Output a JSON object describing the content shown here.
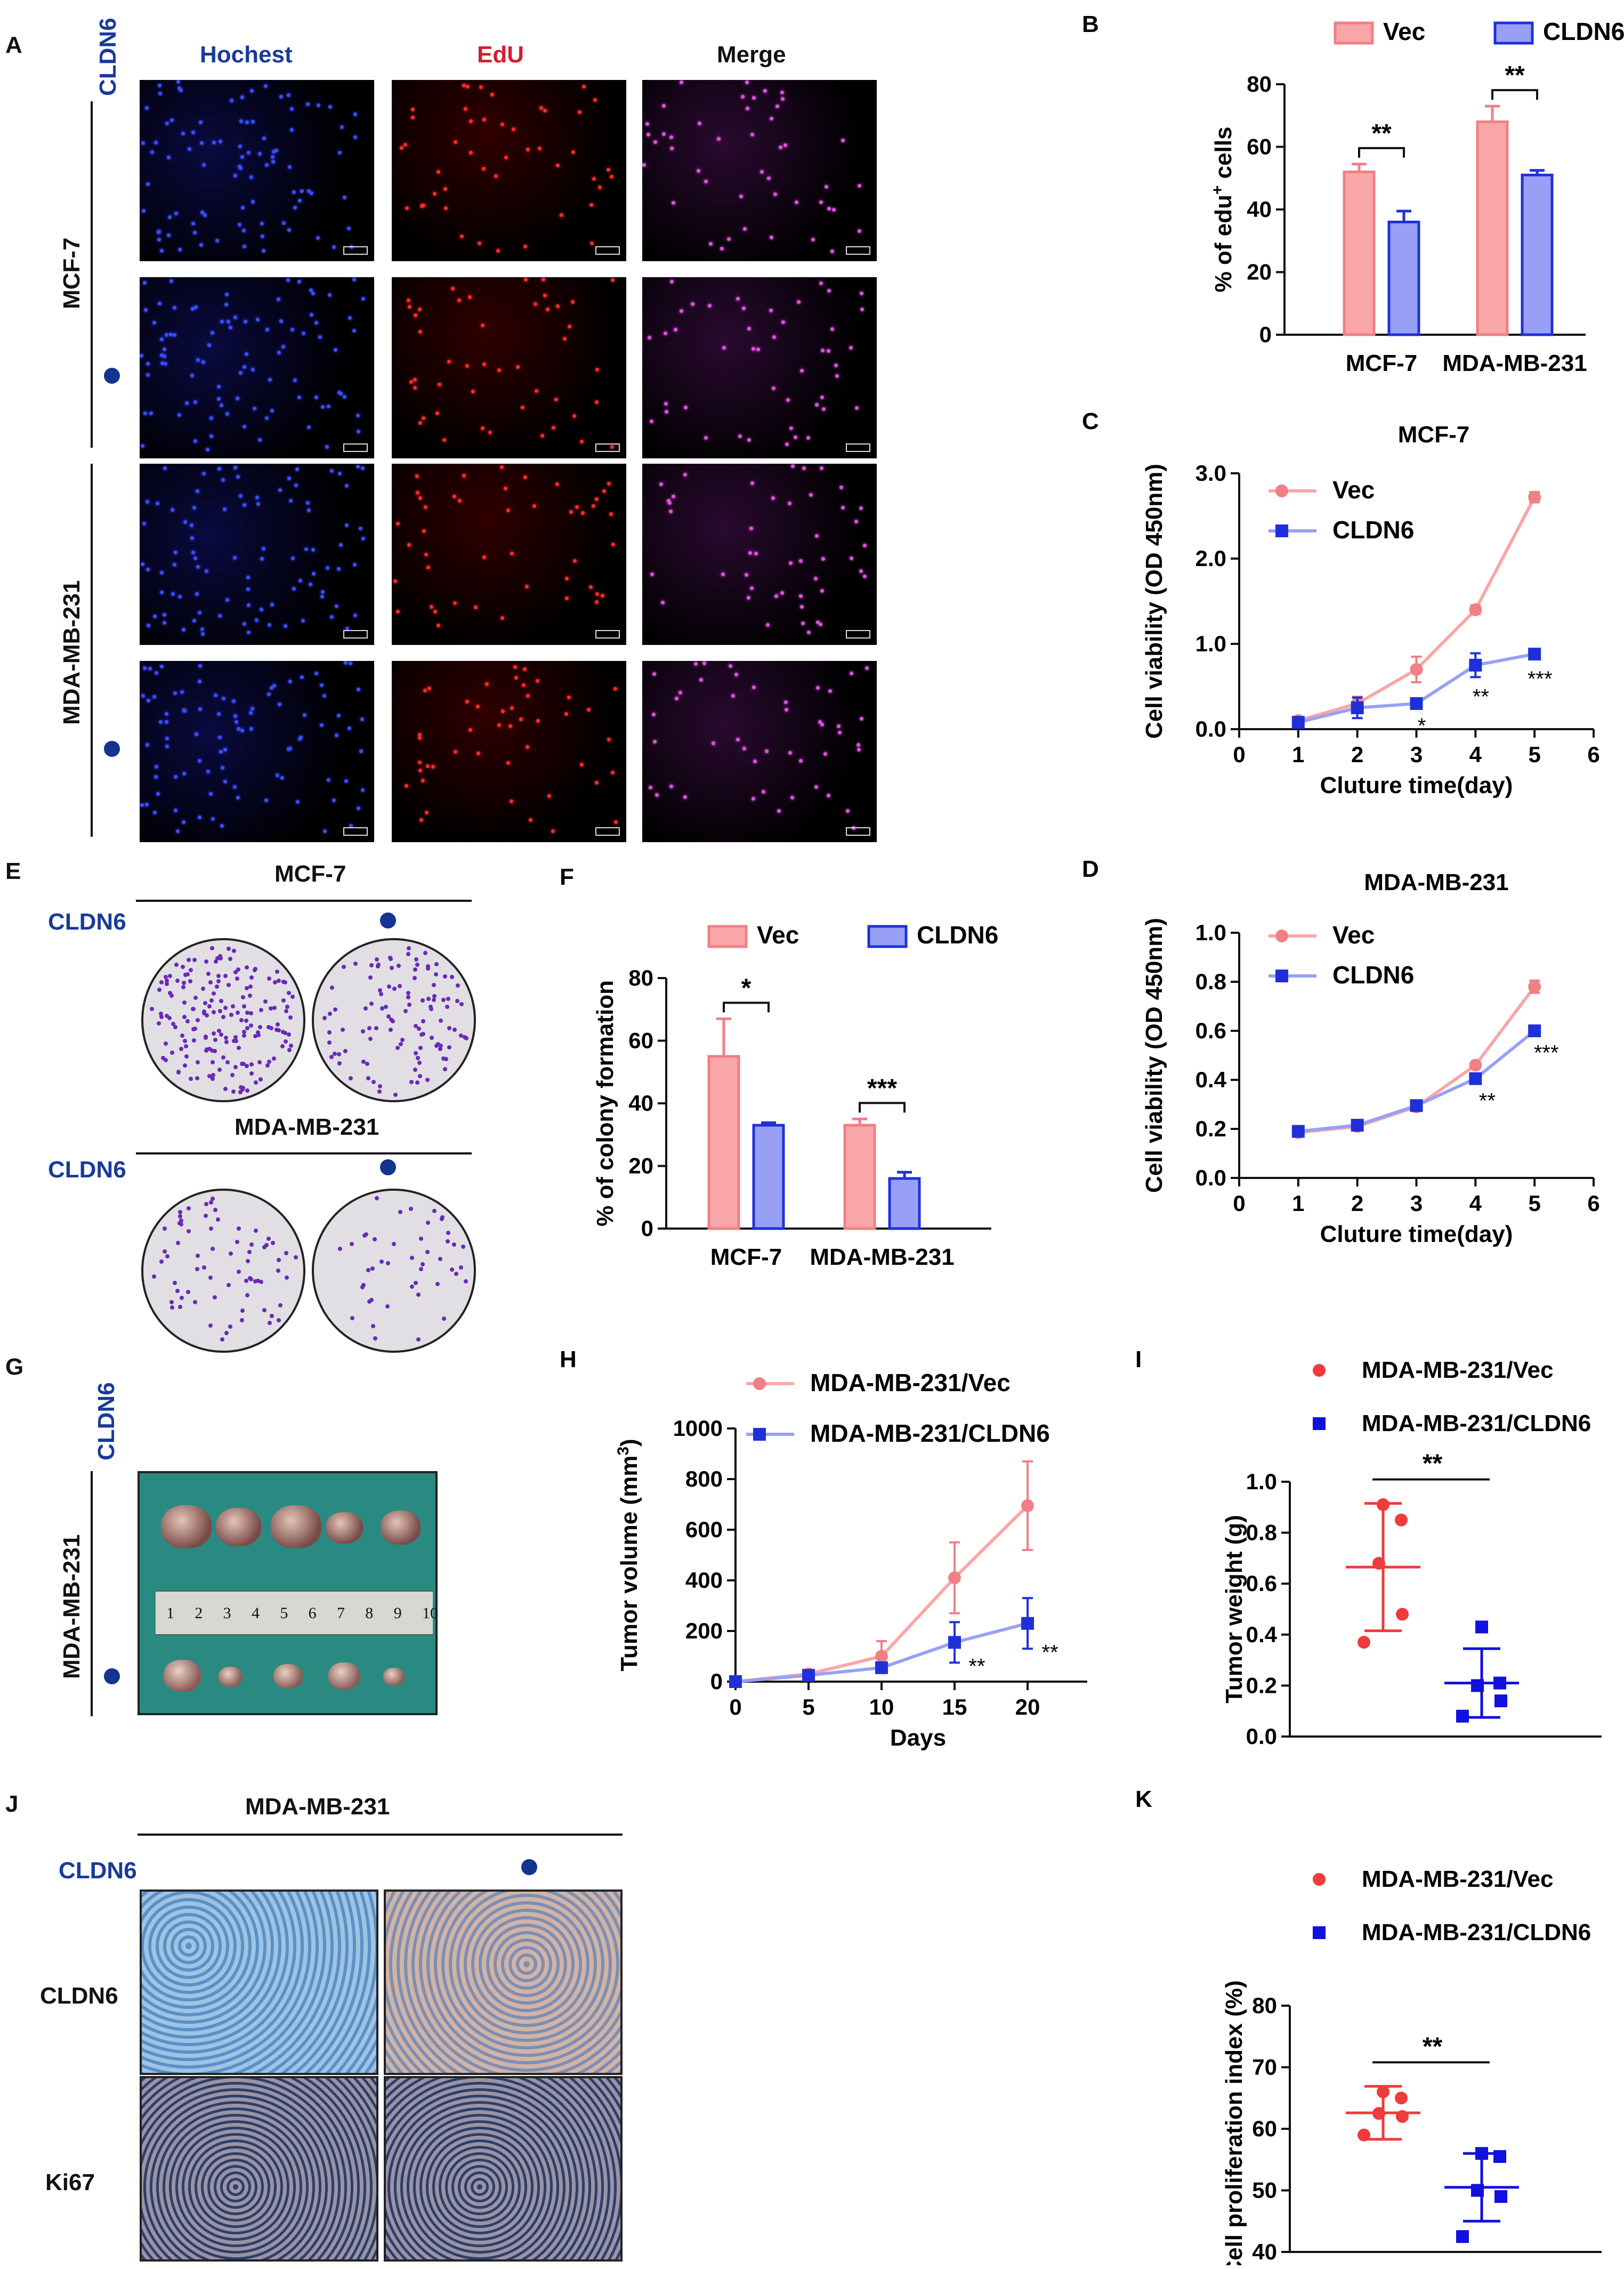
{
  "panels": {
    "A": {
      "letter": "A",
      "cldn6": "CLDN6",
      "columns": [
        "Hochest",
        "EdU",
        "Merge"
      ],
      "rows": [
        "MCF-7",
        "MDA-MB-231"
      ]
    },
    "E": {
      "letter": "E",
      "cldn6": "CLDN6",
      "groups": [
        "MCF-7",
        "MDA-MB-231"
      ]
    },
    "G": {
      "letter": "G",
      "cldn6": "CLDN6",
      "row": "MDA-MB-231",
      "ruler": [
        "1",
        "2",
        "3",
        "4",
        "5",
        "6",
        "7",
        "8",
        "9",
        "10"
      ]
    },
    "J": {
      "letter": "J",
      "title": "MDA-MB-231",
      "cldn6": "CLDN6",
      "rows": [
        "CLDN6",
        "Ki67"
      ]
    }
  },
  "colors": {
    "vec": "#f07f86",
    "vec_fill": "#f8a6a8",
    "cldn6": "#2030d8",
    "cldn6_fill": "#98a0f6",
    "label_blue": "#1a3a9a",
    "label_red": "#d41c2c"
  },
  "chart_data": [
    {
      "id": "B",
      "letter": "B",
      "type": "bar",
      "categories": [
        "MCF-7",
        "MDA-MB-231"
      ],
      "series": [
        {
          "name": "Vec",
          "values": [
            52,
            68
          ],
          "errors": [
            2.5,
            5
          ]
        },
        {
          "name": "CLDN6",
          "values": [
            36,
            51
          ],
          "errors": [
            3.5,
            1.5
          ]
        }
      ],
      "ylabel_main": "% of edu",
      "ylabel_sup": "+",
      "ylabel_end": " cells",
      "ylim": [
        0,
        80
      ],
      "yticks": [
        "0",
        "20",
        "40",
        "60",
        "80"
      ],
      "sig": [
        "**",
        "**"
      ]
    },
    {
      "id": "C",
      "letter": "C",
      "type": "line",
      "title": "MCF-7",
      "x": [
        1,
        2,
        3,
        4,
        5
      ],
      "series": [
        {
          "name": "Vec",
          "values": [
            0.1,
            0.3,
            0.7,
            1.4,
            2.72
          ],
          "errors": [
            0.03,
            0.08,
            0.15,
            0.05,
            0.06
          ]
        },
        {
          "name": "CLDN6",
          "values": [
            0.08,
            0.25,
            0.3,
            0.75,
            0.88
          ],
          "errors": [
            0.02,
            0.12,
            0.03,
            0.14,
            0.06
          ]
        }
      ],
      "xlabel": "Cluture time(day)",
      "ylabel": "Cell viability (OD 450nm)",
      "xlim": [
        0,
        6
      ],
      "ylim": [
        0,
        3
      ],
      "xticks": [
        "0",
        "1",
        "2",
        "3",
        "4",
        "5",
        "6"
      ],
      "yticks": [
        "0.0",
        "1.0",
        "2.0",
        "3.0"
      ],
      "sig": [
        "",
        "",
        "*",
        "**",
        "***"
      ]
    },
    {
      "id": "D",
      "letter": "D",
      "type": "line",
      "title": "MDA-MB-231",
      "x": [
        1,
        2,
        3,
        4,
        5
      ],
      "series": [
        {
          "name": "Vec",
          "values": [
            0.185,
            0.21,
            0.29,
            0.46,
            0.78
          ],
          "errors": [
            0.01,
            0.01,
            0.01,
            0.01,
            0.025
          ]
        },
        {
          "name": "CLDN6",
          "values": [
            0.19,
            0.215,
            0.295,
            0.405,
            0.6
          ],
          "errors": [
            0.01,
            0.01,
            0.01,
            0.01,
            0.01
          ]
        }
      ],
      "xlabel": "Cluture time(day)",
      "ylabel": "Cell viability (OD 450nm)",
      "xlim": [
        0,
        6
      ],
      "ylim": [
        0,
        1
      ],
      "xticks": [
        "0",
        "1",
        "2",
        "3",
        "4",
        "5",
        "6"
      ],
      "yticks": [
        "0.0",
        "0.2",
        "0.4",
        "0.6",
        "0.8",
        "1.0"
      ],
      "sig": [
        "",
        "",
        "",
        "**",
        "***"
      ]
    },
    {
      "id": "F",
      "letter": "F",
      "type": "bar",
      "categories": [
        "MCF-7",
        "MDA-MB-231"
      ],
      "series": [
        {
          "name": "Vec",
          "values": [
            55,
            33
          ],
          "errors": [
            12,
            2
          ]
        },
        {
          "name": "CLDN6",
          "values": [
            33,
            16
          ],
          "errors": [
            0.8,
            2
          ]
        }
      ],
      "ylabel_main": "% of colony formation",
      "ylabel_sup": "",
      "ylabel_end": "",
      "ylim": [
        0,
        80
      ],
      "yticks": [
        "0",
        "20",
        "40",
        "60",
        "80"
      ],
      "sig": [
        "*",
        "***"
      ]
    },
    {
      "id": "H",
      "letter": "H",
      "type": "line",
      "x": [
        0,
        5,
        10,
        15,
        20
      ],
      "series": [
        {
          "name": "MDA-MB-231/Vec",
          "values": [
            0,
            30,
            100,
            410,
            695
          ],
          "errors": [
            0,
            10,
            60,
            140,
            175
          ]
        },
        {
          "name": "MDA-MB-231/CLDN6",
          "values": [
            0,
            25,
            55,
            155,
            230
          ],
          "errors": [
            0,
            8,
            20,
            80,
            100
          ]
        }
      ],
      "xlabel": "Days",
      "ylabel_main": "Tumor volume (mm",
      "ylabel_sup": "3",
      "ylabel_end": ")",
      "xlim": [
        0,
        25
      ],
      "ylim": [
        0,
        1000
      ],
      "xticks": [
        "0",
        "5",
        "10",
        "15",
        "20",
        "25"
      ],
      "yticks": [
        "0",
        "200",
        "400",
        "600",
        "800",
        "1000"
      ],
      "sig": [
        "",
        "",
        "",
        "**",
        "**"
      ]
    },
    {
      "id": "I",
      "letter": "I",
      "type": "scatter",
      "groups": [
        {
          "name": "MDA-MB-231/Vec",
          "points": [
            0.37,
            0.48,
            0.68,
            0.85,
            0.91
          ],
          "mean": 0.665,
          "sd": 0.25
        },
        {
          "name": "MDA-MB-231/CLDN6",
          "points": [
            0.08,
            0.14,
            0.2,
            0.21,
            0.43
          ],
          "mean": 0.21,
          "sd": 0.135
        }
      ],
      "ylabel": "Tumor weight (g)",
      "ylim": [
        0,
        1
      ],
      "yticks": [
        "0.0",
        "0.2",
        "0.4",
        "0.6",
        "0.8",
        "1.0"
      ],
      "sig": "**"
    },
    {
      "id": "K",
      "letter": "K",
      "type": "scatter",
      "groups": [
        {
          "name": "MDA-MB-231/Vec",
          "points": [
            59,
            62,
            62.5,
            65,
            66
          ],
          "mean": 62.6,
          "sd": 4.3
        },
        {
          "name": "MDA-MB-231/CLDN6",
          "points": [
            42.5,
            49,
            50,
            55.5,
            56
          ],
          "mean": 50.5,
          "sd": 5.5
        }
      ],
      "ylabel": "Cell proliferation index (%)",
      "ylim": [
        40,
        80
      ],
      "yticks": [
        "40",
        "50",
        "60",
        "70",
        "80"
      ],
      "sig": "**"
    }
  ]
}
